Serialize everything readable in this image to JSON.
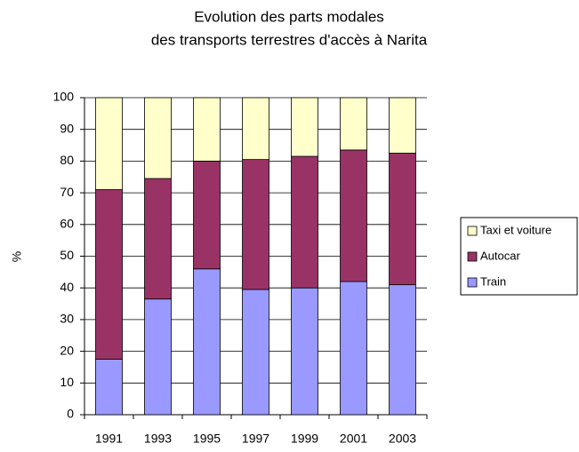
{
  "chart_data": {
    "type": "stacked_bar",
    "title": [
      "Evolution des parts modales",
      "des transports terrestres d'accès à Narita"
    ],
    "ylabel": "%",
    "categories": [
      "1991",
      "1993",
      "1995",
      "1997",
      "1999",
      "2001",
      "2003"
    ],
    "series": [
      {
        "name": "Train",
        "color": "#9999ff",
        "values": [
          17.5,
          36.5,
          46,
          39.5,
          40,
          42,
          41
        ]
      },
      {
        "name": "Autocar",
        "color": "#993366",
        "values": [
          53.5,
          38,
          34,
          41,
          41.5,
          41.5,
          41.5
        ]
      },
      {
        "name": "Taxi et voiture",
        "color": "#ffffcc",
        "values": [
          29,
          25.5,
          20,
          19.5,
          18.5,
          16.5,
          17.5
        ]
      }
    ],
    "ylim": [
      0,
      100
    ],
    "yticks": [
      0,
      10,
      20,
      30,
      40,
      50,
      60,
      70,
      80,
      90,
      100
    ],
    "grid": true,
    "legend": "right"
  }
}
